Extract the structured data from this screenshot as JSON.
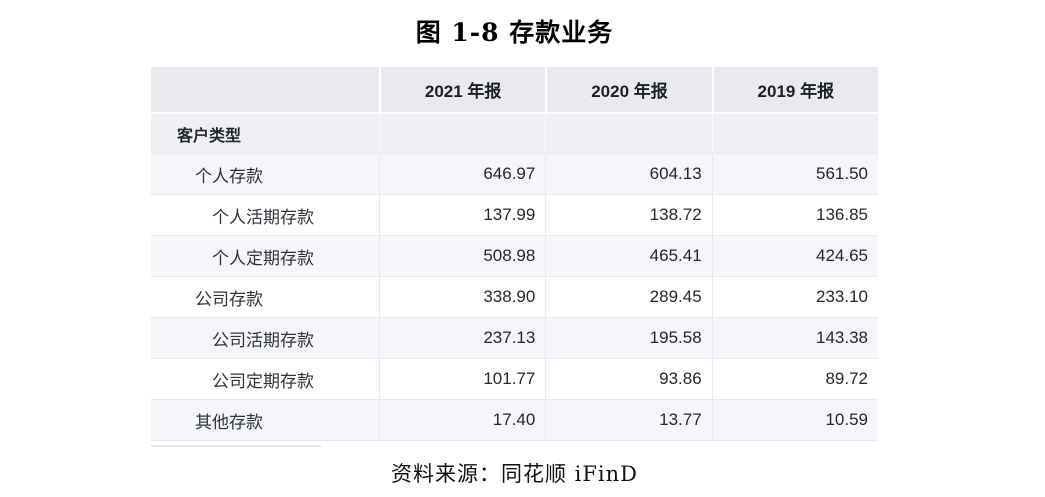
{
  "figure": {
    "title": "图 1-8 存款业务",
    "source": "资料来源：同花顺 iFinD"
  },
  "table": {
    "corner_label": "客户类型",
    "columns": [
      "2021 年报",
      "2020 年报",
      "2019 年报"
    ],
    "rows": [
      {
        "label": "个人存款",
        "indent": 1,
        "values": [
          "646.97",
          "604.13",
          "561.50"
        ]
      },
      {
        "label": "个人活期存款",
        "indent": 2,
        "values": [
          "137.99",
          "138.72",
          "136.85"
        ]
      },
      {
        "label": "个人定期存款",
        "indent": 2,
        "values": [
          "508.98",
          "465.41",
          "424.65"
        ]
      },
      {
        "label": "公司存款",
        "indent": 1,
        "values": [
          "338.90",
          "289.45",
          "233.10"
        ]
      },
      {
        "label": "公司活期存款",
        "indent": 2,
        "values": [
          "237.13",
          "195.58",
          "143.38"
        ]
      },
      {
        "label": "公司定期存款",
        "indent": 2,
        "values": [
          "101.77",
          "93.86",
          "89.72"
        ]
      },
      {
        "label": "其他存款",
        "indent": 1,
        "values": [
          "17.40",
          "13.77",
          "10.59"
        ]
      }
    ]
  },
  "colors": {
    "header_bg": "#e9eaed",
    "group_row_bg": "#eff0f3",
    "stripe_bg": "#f5f6f9",
    "row_border": "#e8e9eb",
    "number_text": "#24282d",
    "label_text": "#2f343a"
  }
}
